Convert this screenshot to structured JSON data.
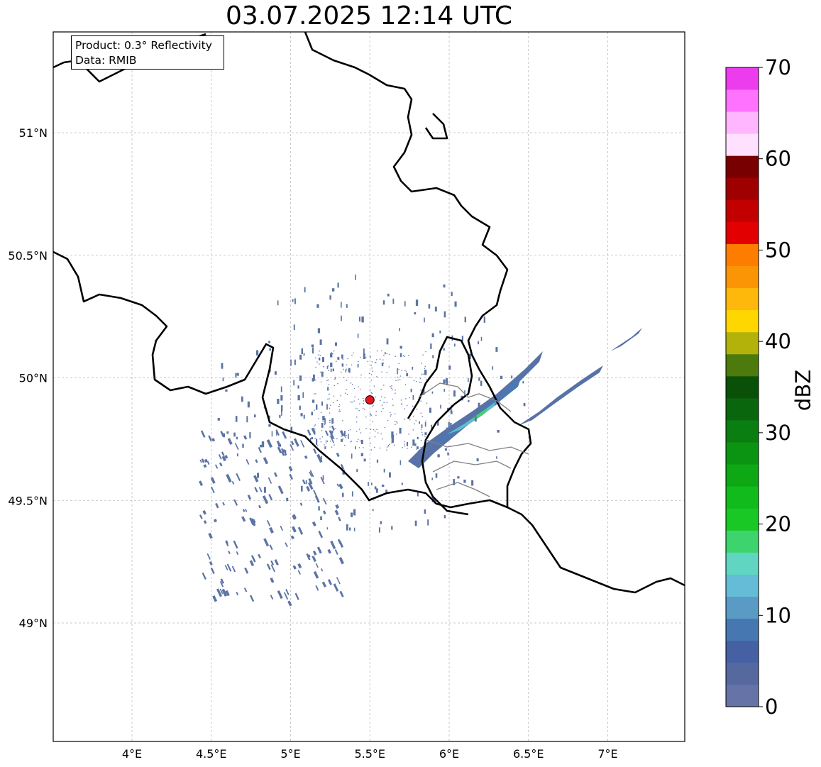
{
  "title": "03.07.2025 12:14 UTC",
  "info": {
    "product_line": "Product: 0.3° Reflectivity",
    "data_line": "Data: RMIB"
  },
  "axes": {
    "lon_ticks": [
      "4°E",
      "4.5°E",
      "5°E",
      "5.5°E",
      "6°E",
      "6.5°E",
      "7°E"
    ],
    "lat_ticks": [
      "51°N",
      "50.5°N",
      "50°N",
      "49.5°N",
      "49°N"
    ]
  },
  "radar_site": {
    "lon": 5.5,
    "lat": 49.91,
    "color": "#e8141c"
  },
  "colorbar": {
    "label": "dBZ",
    "tick_labels": [
      "0",
      "10",
      "20",
      "30",
      "40",
      "50",
      "60",
      "70"
    ],
    "min": 0,
    "max": 70,
    "step": 2.5,
    "colors": [
      "#6673a6",
      "#56699f",
      "#4661a3",
      "#4677b0",
      "#5a9bc6",
      "#65bcd6",
      "#60d6c2",
      "#3dd46e",
      "#19c824",
      "#11bb1c",
      "#0ea814",
      "#0b9412",
      "#0a7e10",
      "#0a660c",
      "#0b5009",
      "#4c7a0d",
      "#b2b20a",
      "#ffd700",
      "#fdb80b",
      "#fc9505",
      "#fd7d00",
      "#e20000",
      "#c20000",
      "#9e0000",
      "#790000",
      "#ffe0ff",
      "#ffb6ff",
      "#ff72ff",
      "#ec3cee"
    ]
  },
  "colors": {
    "border_country": "#000000",
    "border_province": "#808080",
    "grid": "#bbbbbb",
    "echo_low": "#5c74a4"
  }
}
